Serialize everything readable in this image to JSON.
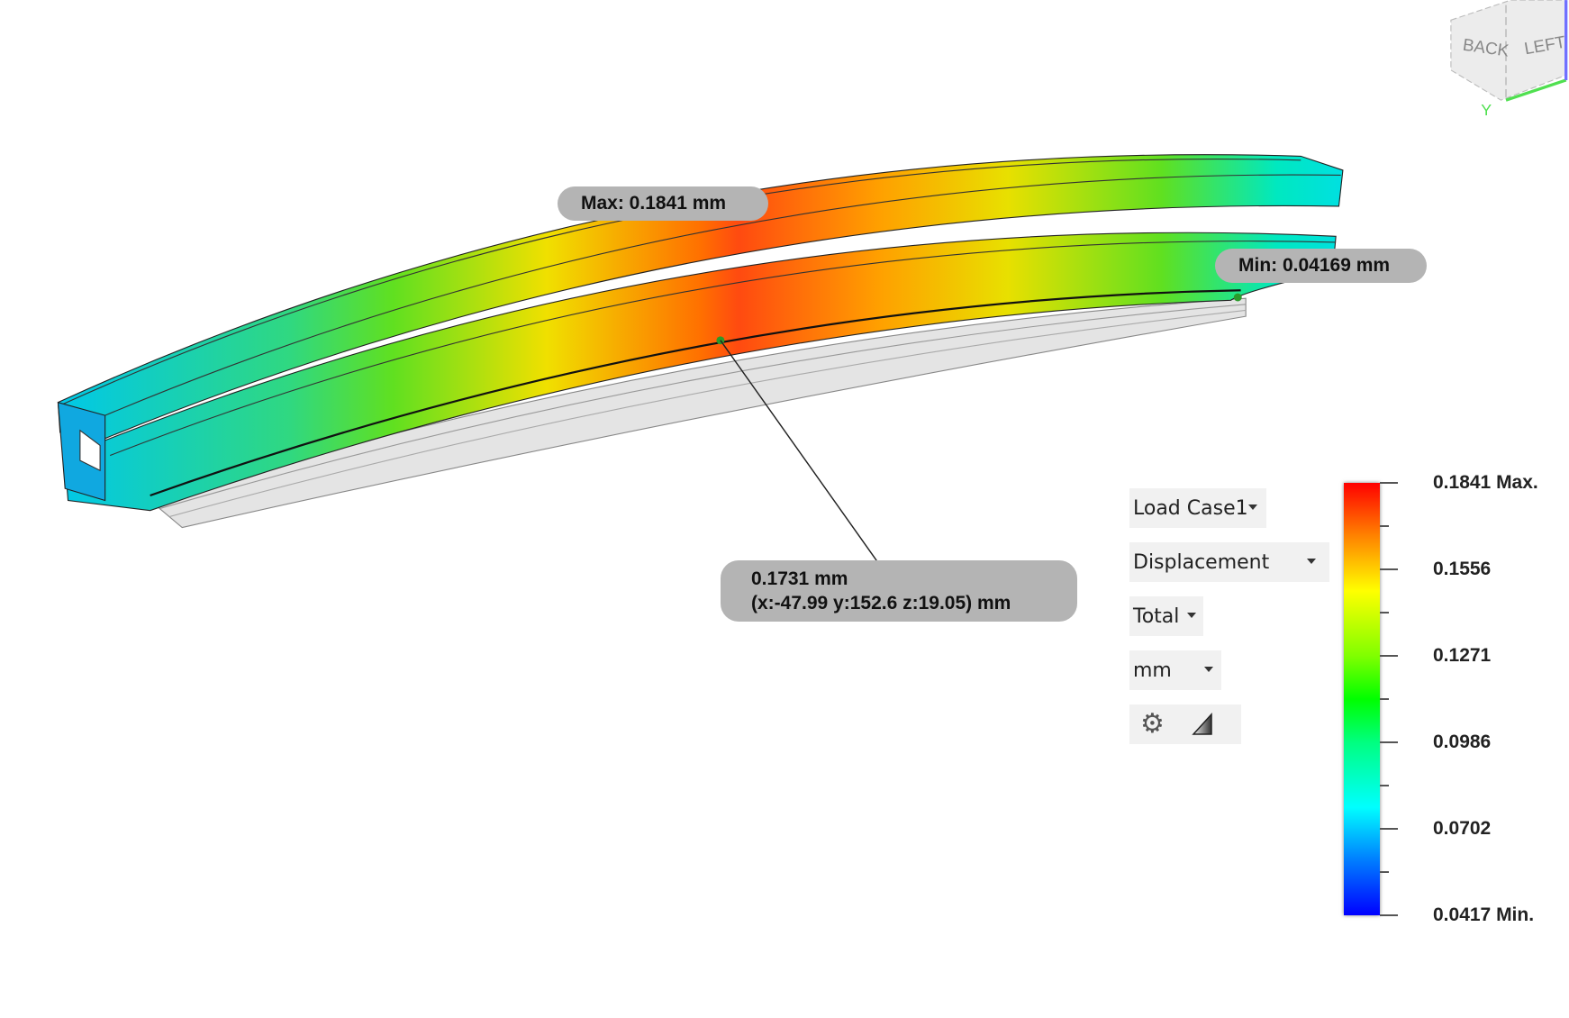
{
  "callouts": {
    "max": "Max: 0.1841 mm",
    "min": "Min: 0.04169 mm",
    "probe_value": "0.1731 mm",
    "probe_coords": "(x:-47.99 y:152.6 z:19.05) mm"
  },
  "controls": {
    "load_case": "Load Case1",
    "result_type": "Displacement",
    "component": "Total",
    "unit": "mm",
    "icons": [
      "gear-icon",
      "legend-scale-icon"
    ]
  },
  "legend": {
    "labels": [
      "0.1841 Max.",
      "0.1556",
      "0.1271",
      "0.0986",
      "0.0702",
      "0.0417 Min."
    ],
    "colors": [
      "#ff0000",
      "#ffff00",
      "#00ff00",
      "#00ffff",
      "#0000ff"
    ]
  },
  "viewcube": {
    "faces": [
      "BACK",
      "LEFT"
    ],
    "axis": "Y"
  }
}
